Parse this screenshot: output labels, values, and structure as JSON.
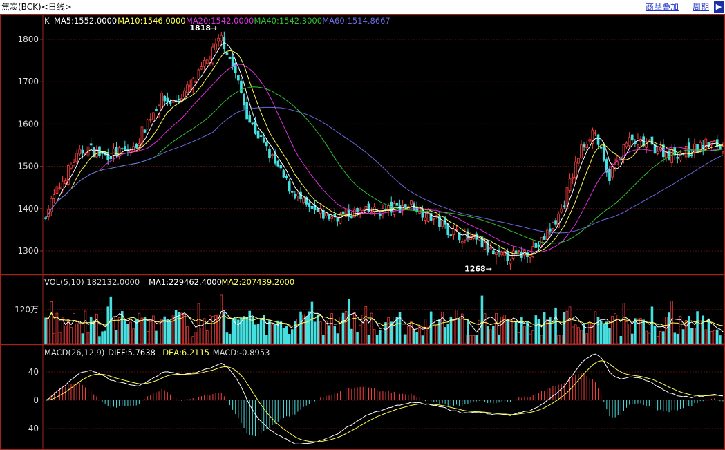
{
  "window": {
    "title": "焦炭(BCK)<日线>",
    "links": [
      "商品叠加",
      "周期"
    ],
    "scroll_icon": "triangle-right-icon"
  },
  "colors": {
    "background": "#000000",
    "frame": "#a0241e",
    "grid": "#5a1010",
    "axis_text": "#dddddd",
    "up": "#ff4040",
    "down": "#46e0e0",
    "ma5": "#ffffff",
    "ma10": "#ffff55",
    "ma20": "#e030e0",
    "ma40": "#30c030",
    "ma60": "#6a6ae0",
    "vol_ma1": "#ffffff",
    "vol_ma2": "#ffff55",
    "diff": "#ffffff",
    "dea": "#ffff55",
    "macd_pos": "#ff4040",
    "macd_neg": "#46e0e0"
  },
  "chart_data": [
    {
      "type": "candlestick",
      "panel": "price",
      "header": {
        "prefix": "K",
        "items": [
          {
            "label": "MA5:1552.0000",
            "color_key": "ma5"
          },
          {
            "label": "MA10:1546.0000",
            "color_key": "ma10"
          },
          {
            "label": "MA20:1542.0000",
            "color_key": "ma20"
          },
          {
            "label": "MA40:1542.3000",
            "color_key": "ma40"
          },
          {
            "label": "MA60:1514.8667",
            "color_key": "ma60"
          }
        ]
      },
      "y_ticks": [
        "1800",
        "1700",
        "1600",
        "1500",
        "1400",
        "1300"
      ],
      "ylim": [
        1270,
        1820
      ],
      "annotations": [
        {
          "text": "1818",
          "value": 1818,
          "bar_fraction": 0.26
        },
        {
          "text": "1268",
          "value": 1268,
          "bar_fraction": 0.667
        }
      ],
      "key_closes": [
        {
          "t": 0,
          "v": 1390
        },
        {
          "t": 0.04,
          "v": 1510
        },
        {
          "t": 0.06,
          "v": 1545
        },
        {
          "t": 0.085,
          "v": 1525
        },
        {
          "t": 0.13,
          "v": 1540
        },
        {
          "t": 0.15,
          "v": 1605
        },
        {
          "t": 0.17,
          "v": 1660
        },
        {
          "t": 0.19,
          "v": 1650
        },
        {
          "t": 0.22,
          "v": 1700
        },
        {
          "t": 0.26,
          "v": 1805
        },
        {
          "t": 0.28,
          "v": 1720
        },
        {
          "t": 0.3,
          "v": 1610
        },
        {
          "t": 0.33,
          "v": 1530
        },
        {
          "t": 0.36,
          "v": 1450
        },
        {
          "t": 0.39,
          "v": 1395
        },
        {
          "t": 0.42,
          "v": 1380
        },
        {
          "t": 0.46,
          "v": 1390
        },
        {
          "t": 0.5,
          "v": 1395
        },
        {
          "t": 0.54,
          "v": 1410
        },
        {
          "t": 0.57,
          "v": 1380
        },
        {
          "t": 0.6,
          "v": 1345
        },
        {
          "t": 0.64,
          "v": 1320
        },
        {
          "t": 0.667,
          "v": 1285
        },
        {
          "t": 0.7,
          "v": 1290
        },
        {
          "t": 0.73,
          "v": 1315
        },
        {
          "t": 0.76,
          "v": 1390
        },
        {
          "t": 0.79,
          "v": 1540
        },
        {
          "t": 0.81,
          "v": 1590
        },
        {
          "t": 0.83,
          "v": 1470
        },
        {
          "t": 0.86,
          "v": 1560
        },
        {
          "t": 0.89,
          "v": 1550
        },
        {
          "t": 0.92,
          "v": 1530
        },
        {
          "t": 0.95,
          "v": 1535
        },
        {
          "t": 0.98,
          "v": 1555
        },
        {
          "t": 1,
          "v": 1545
        }
      ]
    },
    {
      "type": "bar",
      "panel": "volume",
      "header": {
        "items": [
          {
            "label": "VOL(5,10)  182132.0000",
            "color_key": "axis_text"
          },
          {
            "label": "MA1:229462.4000",
            "color_key": "vol_ma1"
          },
          {
            "label": "MA2:207439.2000",
            "color_key": "vol_ma2"
          }
        ]
      },
      "y_ticks": [
        "120万"
      ],
      "tick_value": 1200000,
      "ymax": 2000000
    },
    {
      "type": "bar",
      "panel": "macd",
      "header": {
        "items": [
          {
            "label": "MACD(26,12,9)",
            "color_key": "axis_text"
          },
          {
            "label": "DIFF:5.7638",
            "color_key": "diff"
          },
          {
            "label": "DEA:6.2115",
            "color_key": "dea"
          },
          {
            "label": "MACD:-0.8953",
            "color_key": "axis_text"
          }
        ]
      },
      "y_ticks": [
        "40",
        "0",
        "-40"
      ],
      "ylim": [
        -60,
        60
      ]
    }
  ]
}
